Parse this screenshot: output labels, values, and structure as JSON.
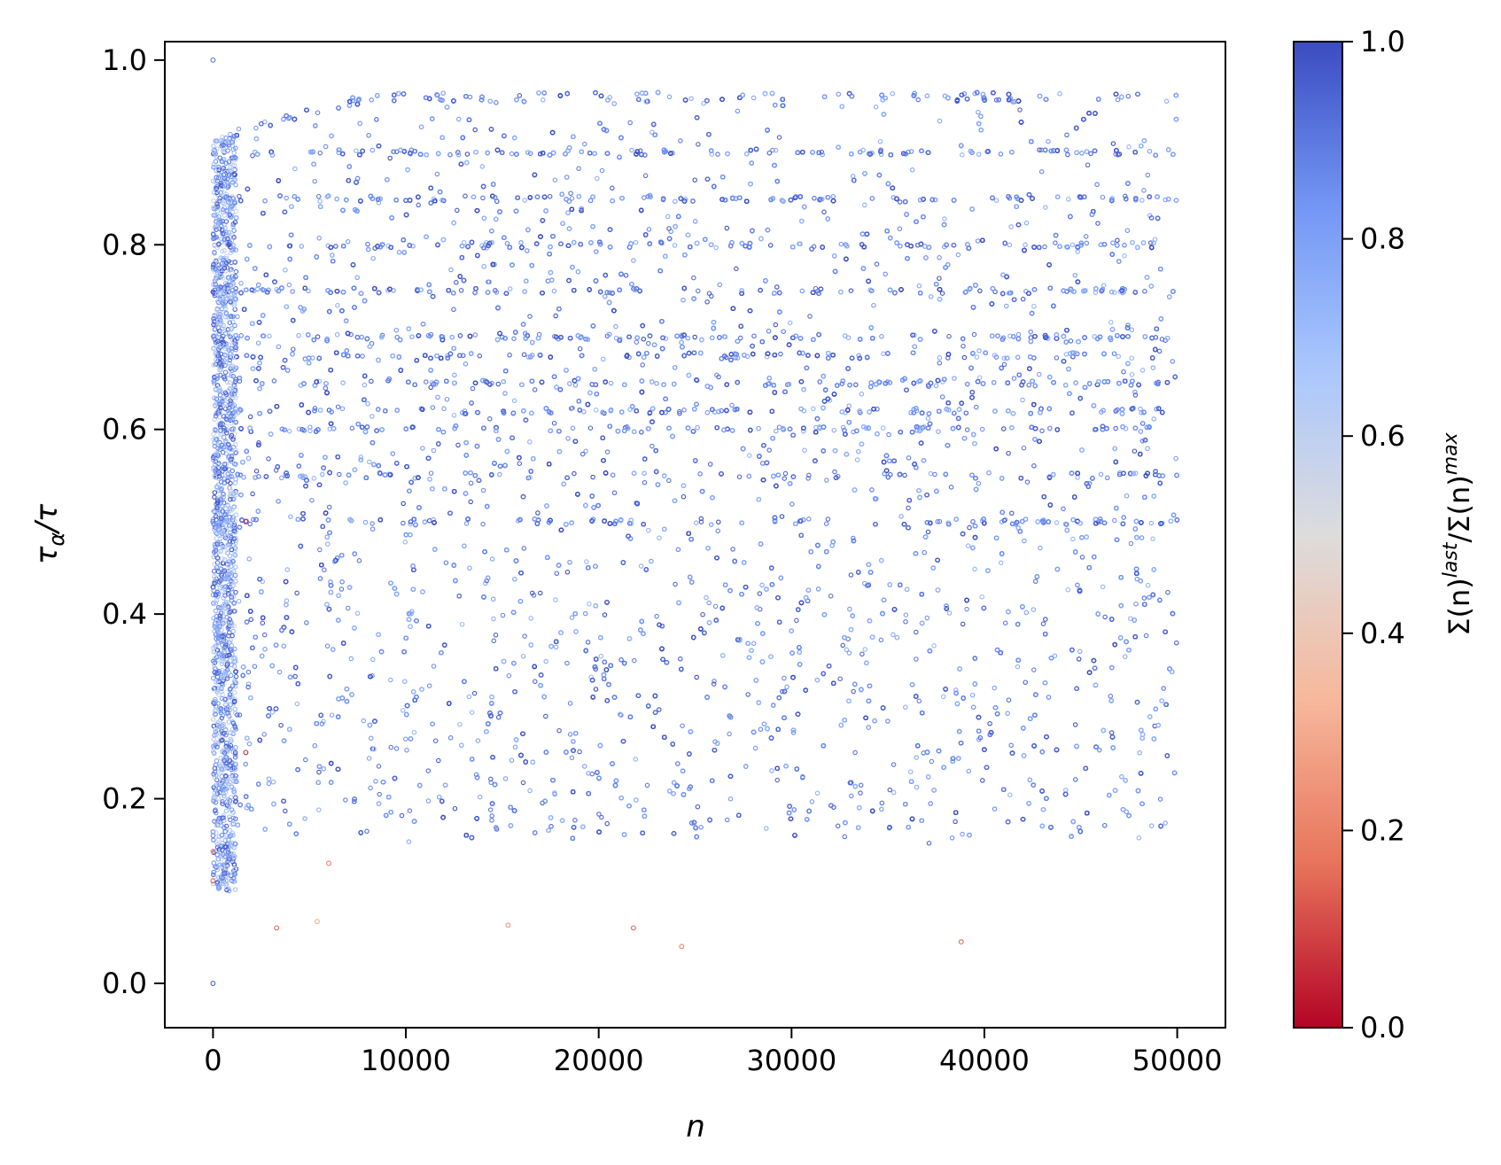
{
  "chart_data": {
    "type": "scatter",
    "title": "",
    "xlabel": "n",
    "ylabel": "τα/τ",
    "ylabel_parts": {
      "main": "τ",
      "sub": "α",
      "rest": "/τ"
    },
    "xlim": [
      -2500,
      52500
    ],
    "ylim": [
      -0.048,
      1.02
    ],
    "x_ticks": [
      0,
      10000,
      20000,
      30000,
      40000,
      50000
    ],
    "x_tick_labels": [
      "0",
      "10000",
      "20000",
      "30000",
      "40000",
      "50000"
    ],
    "y_ticks": [
      0.0,
      0.2,
      0.4,
      0.6,
      0.8,
      1.0
    ],
    "y_tick_labels": [
      "0.0",
      "0.2",
      "0.4",
      "0.6",
      "0.8",
      "1.0"
    ],
    "grid": false,
    "point_style": "small hollow circles, colored by value",
    "colormap": "coolwarm",
    "colormap_stops": [
      "#b40426",
      "#e7745b",
      "#f7b89c",
      "#dddcdc",
      "#aac7fd",
      "#7396f5",
      "#3b4cc0"
    ],
    "colorbar": {
      "label": "Σ(n)last/Σ(n)max",
      "label_parts": {
        "a": "Σ(n)",
        "sup1": "last",
        "b": "/Σ(n)",
        "sup2": "max"
      },
      "range": [
        0.0,
        1.0
      ],
      "ticks": [
        0.0,
        0.2,
        0.4,
        0.6,
        0.8,
        1.0
      ],
      "tick_labels": [
        "0.0",
        "0.2",
        "0.4",
        "0.6",
        "0.8",
        "1.0"
      ]
    },
    "point_generation": {
      "description": "dense cloud; for each n the points lie at tau_alpha/tau = k/n-like fractions, mostly colour value near 1",
      "x_range": [
        0,
        50000
      ],
      "y_range": [
        0.0,
        0.97
      ],
      "approx_count": 30000
    },
    "highlighted_points": [
      {
        "x": 0,
        "y": 0.0,
        "c": 0.95
      },
      {
        "x": 0,
        "y": 1.0,
        "c": 0.9
      },
      {
        "x": 0,
        "y": 0.5,
        "c": 0.9
      },
      {
        "x": 1700,
        "y": 0.25,
        "c": 0.05
      },
      {
        "x": 1700,
        "y": 0.5,
        "c": 0.05
      },
      {
        "x": 3300,
        "y": 0.06,
        "c": 0.15
      },
      {
        "x": 5400,
        "y": 0.067,
        "c": 0.3
      },
      {
        "x": 6000,
        "y": 0.13,
        "c": 0.2
      },
      {
        "x": 21800,
        "y": 0.06,
        "c": 0.15
      },
      {
        "x": 24300,
        "y": 0.04,
        "c": 0.2
      },
      {
        "x": 38800,
        "y": 0.045,
        "c": 0.15
      },
      {
        "x": 15300,
        "y": 0.063,
        "c": 0.25
      },
      {
        "x": 0,
        "y": 0.143,
        "c": 0.2
      },
      {
        "x": 0,
        "y": 0.111,
        "c": 0.15
      }
    ]
  }
}
